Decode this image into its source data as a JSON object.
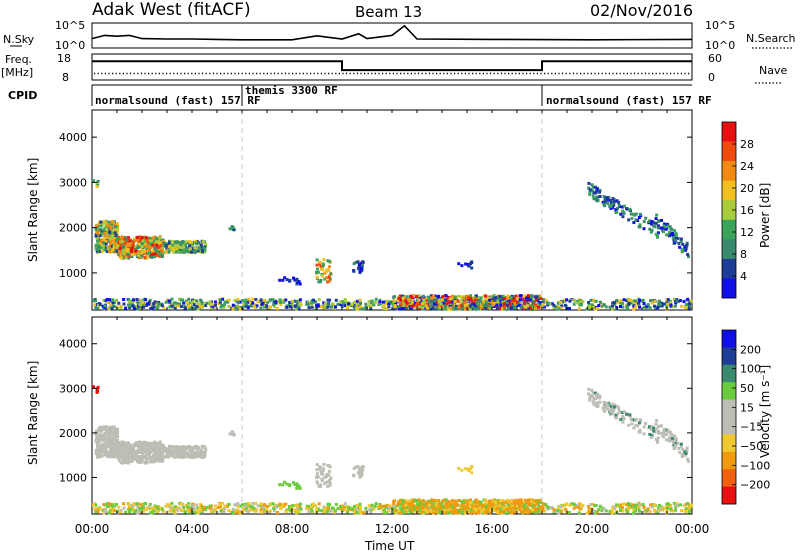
{
  "header": {
    "title": "Adak West (fitACF)",
    "beam": "Beam 13",
    "date": "02/Nov/2016"
  },
  "colors": {
    "power_scale": [
      "#1010e6",
      "#1d3d96",
      "#3a8a6e",
      "#3aa55a",
      "#a8cc3c",
      "#f0c020",
      "#f08a10",
      "#f04a10",
      "#e61010"
    ],
    "velocity_scale": [
      "#e61010",
      "#f06010",
      "#f09a10",
      "#f0c830",
      "#bdbdb5",
      "#bdbdb5",
      "#6acc3c",
      "#3a8a6e",
      "#1d3d96",
      "#1010e6"
    ],
    "ground_scatter": "#bdbdb5",
    "dashed_lines": "#c8c8c8"
  },
  "chart_data": [
    {
      "type": "line",
      "panel": "noise",
      "left_label": "N.Sky",
      "right_label": "N.Search",
      "left_ticks": [
        "10^5",
        "10^0"
      ],
      "right_ticks": [
        "10^5",
        "10^0"
      ],
      "x": [
        "00:00",
        "00:30",
        "01:00",
        "01:30",
        "02:00",
        "03:00",
        "04:00",
        "05:00",
        "06:00",
        "08:00",
        "09:00",
        "10:00",
        "10:40",
        "11:00",
        "12:00",
        "12:30",
        "13:00",
        "16:00",
        "20:00",
        "24:00"
      ],
      "series": [
        {
          "values": [
            1.6,
            2.4,
            2.2,
            2.4,
            1.6,
            1.5,
            1.5,
            1.4,
            1.3,
            1.3,
            2.3,
            1.5,
            2.8,
            1.6,
            2.4,
            4.8,
            1.5,
            1.4,
            1.3,
            1.4
          ]
        }
      ]
    },
    {
      "type": "line",
      "panel": "frequency",
      "left_label": "Freq.",
      "left_unit": "[MHz]",
      "right_label": "Nave",
      "left_ticks": [
        "18",
        "8"
      ],
      "right_ticks": [
        "60",
        "0"
      ],
      "x": [
        "00:00",
        "06:00",
        "10:00",
        "18:00",
        "24:00"
      ],
      "series": [
        {
          "values": [
            15.6,
            15.6,
            11.6,
            15.6,
            15.6
          ]
        }
      ]
    },
    {
      "type": "table",
      "panel": "cpid",
      "left_label": "CPID",
      "segments": [
        {
          "label": "normalsound (fast) 157 RF",
          "start_hour": 0,
          "end_hour": 6
        },
        {
          "label": "themis 3300 RF",
          "start_hour": 6,
          "end_hour": 18
        },
        {
          "label": "normalsound (fast) 157 RF",
          "start_hour": 18,
          "end_hour": 24
        }
      ]
    },
    {
      "type": "heatmap",
      "panel": "power",
      "ylabel": "Slant Range [km]",
      "yticks": [
        1000,
        2000,
        3000,
        4000
      ],
      "ylim": [
        180,
        4600
      ],
      "colorbar_label": "Power [dB]",
      "colorbar_ticks": [
        "28",
        "24",
        "20",
        "16",
        "12",
        "8",
        "4"
      ],
      "colorbar_range": [
        0,
        32
      ]
    },
    {
      "type": "heatmap",
      "panel": "velocity",
      "ylabel": "Slant Range [km]",
      "yticks": [
        1000,
        2000,
        3000,
        4000
      ],
      "ylim": [
        180,
        4600
      ],
      "colorbar_label": "Velocity [m s⁻¹]",
      "colorbar_ticks": [
        "200",
        "100",
        "50",
        "15",
        "−15",
        "−50",
        "−100",
        "−200"
      ],
      "xlabel": "Time UT",
      "xticks": [
        "00:00",
        "04:00",
        "08:00",
        "12:00",
        "16:00",
        "20:00",
        "00:00"
      ],
      "xlim_hours": [
        0,
        24
      ]
    }
  ]
}
